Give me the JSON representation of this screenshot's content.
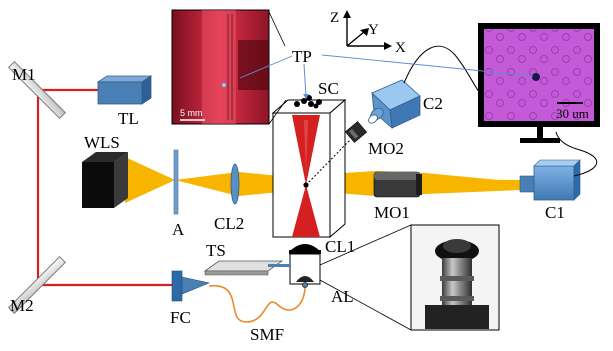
{
  "labels": {
    "M1": "M1",
    "M2": "M2",
    "TL": "TL",
    "WLS": "WLS",
    "A": "A",
    "CL2": "CL2",
    "SC": "SC",
    "TP": "TP",
    "C2": "C2",
    "MO2": "MO2",
    "MO1": "MO1",
    "C1": "C1",
    "CL1": "CL1",
    "TS": "TS",
    "AL": "AL",
    "FC": "FC",
    "SMF": "SMF"
  },
  "axes": {
    "z": "Z",
    "y": "Y",
    "x": "X"
  },
  "inset_scale": "5 mm",
  "monitor_scale": "30 um",
  "colors": {
    "laser": "#d42020",
    "white_light": "#f7b500",
    "component_blue": "#4a7fb5",
    "monitor_screen": "#c45ad8",
    "inset_red": "#c41e3a"
  }
}
